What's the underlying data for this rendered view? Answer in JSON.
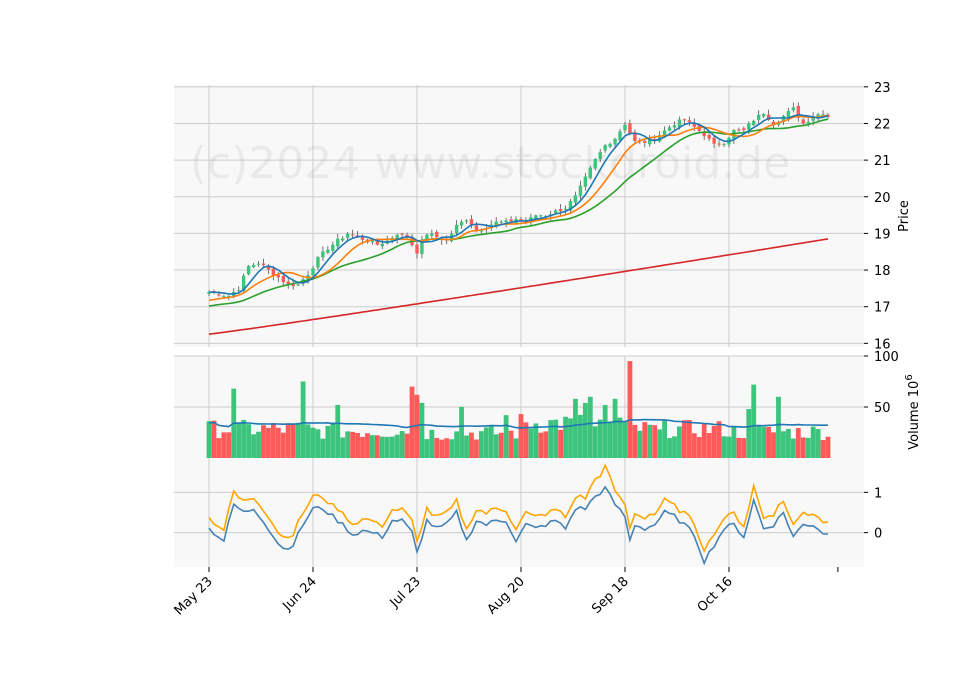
{
  "chart_data": {
    "type": "candlestick-multi-panel",
    "watermark": "(c)2024 www.stockdroid.de",
    "colors": {
      "up": "#3cc47c",
      "down": "#ff5a5a",
      "panel_bg": "#f8f8f8",
      "grid": "#cccccc",
      "ma5": "#1f77b4",
      "ma10": "#ff7f0e",
      "ma20": "#2ca02c",
      "ma100": "#d62728",
      "vol_ma": "#1f77b4",
      "osc_a": "#4682b4",
      "osc_b": "#ffa500"
    },
    "x_ticks": [
      "May 23",
      "Jun 24",
      "Jul 23",
      "Aug 20",
      "Sep 18",
      "Oct 16"
    ],
    "x_tick_index": [
      0,
      21,
      42,
      63,
      84,
      105
    ],
    "n_bars": 126,
    "price_panel": {
      "ylabel": "Price",
      "ylim": [
        15.9,
        23.05
      ],
      "yticks": [
        "16",
        "17",
        "18",
        "19",
        "20",
        "21",
        "22",
        "23"
      ],
      "ytick_values": [
        16,
        17,
        18,
        19,
        20,
        21,
        22,
        23
      ],
      "close_keypoints": [
        [
          0,
          17.4
        ],
        [
          4,
          17.3
        ],
        [
          6,
          17.5
        ],
        [
          8,
          18.1
        ],
        [
          10,
          18.2
        ],
        [
          12,
          18.0
        ],
        [
          14,
          17.8
        ],
        [
          16,
          17.6
        ],
        [
          18,
          17.6
        ],
        [
          20,
          17.9
        ],
        [
          22,
          18.3
        ],
        [
          24,
          18.6
        ],
        [
          26,
          18.8
        ],
        [
          28,
          19.0
        ],
        [
          30,
          18.9
        ],
        [
          32,
          18.8
        ],
        [
          34,
          18.7
        ],
        [
          36,
          18.8
        ],
        [
          38,
          19.0
        ],
        [
          40,
          18.9
        ],
        [
          42,
          18.5
        ],
        [
          44,
          19.0
        ],
        [
          46,
          18.9
        ],
        [
          48,
          18.8
        ],
        [
          50,
          19.2
        ],
        [
          52,
          19.4
        ],
        [
          54,
          19.1
        ],
        [
          56,
          19.2
        ],
        [
          58,
          19.3
        ],
        [
          60,
          19.3
        ],
        [
          62,
          19.4
        ],
        [
          64,
          19.3
        ],
        [
          66,
          19.5
        ],
        [
          68,
          19.5
        ],
        [
          70,
          19.6
        ],
        [
          72,
          19.7
        ],
        [
          74,
          20.0
        ],
        [
          76,
          20.5
        ],
        [
          78,
          21.0
        ],
        [
          80,
          21.4
        ],
        [
          82,
          21.6
        ],
        [
          84,
          22.0
        ],
        [
          86,
          21.5
        ],
        [
          88,
          21.5
        ],
        [
          90,
          21.6
        ],
        [
          92,
          21.8
        ],
        [
          94,
          22.0
        ],
        [
          96,
          22.1
        ],
        [
          98,
          21.9
        ],
        [
          100,
          21.7
        ],
        [
          102,
          21.4
        ],
        [
          104,
          21.5
        ],
        [
          106,
          21.8
        ],
        [
          108,
          21.8
        ],
        [
          110,
          22.1
        ],
        [
          112,
          22.3
        ],
        [
          114,
          22.0
        ],
        [
          116,
          22.2
        ],
        [
          118,
          22.4
        ],
        [
          120,
          22.0
        ],
        [
          122,
          22.2
        ],
        [
          124,
          22.3
        ],
        [
          125,
          22.2
        ]
      ],
      "ma_start": {
        "ma5": 17.4,
        "ma10": 17.15,
        "ma20": 17.0,
        "ma100": 16.25
      },
      "ma100_end": 18.85
    },
    "volume_panel": {
      "ylabel": "Volume  10^6",
      "ylim": [
        0,
        100
      ],
      "yticks": [
        "50",
        "100"
      ],
      "ytick_values": [
        50,
        100
      ],
      "spikes": [
        [
          5,
          68
        ],
        [
          19,
          75
        ],
        [
          26,
          52
        ],
        [
          41,
          70
        ],
        [
          42,
          62
        ],
        [
          43,
          54
        ],
        [
          51,
          50
        ],
        [
          60,
          42
        ],
        [
          74,
          58
        ],
        [
          76,
          54
        ],
        [
          77,
          60
        ],
        [
          80,
          52
        ],
        [
          82,
          58
        ],
        [
          85,
          95
        ],
        [
          91,
          28
        ],
        [
          109,
          48
        ],
        [
          110,
          72
        ],
        [
          115,
          60
        ]
      ],
      "base_level": [
        30,
        28,
        26,
        36,
        30,
        27
      ]
    },
    "oscillator_panel": {
      "ylim": [
        -0.85,
        1.85
      ],
      "yticks": [
        "0",
        "1"
      ],
      "ytick_values": [
        0,
        1
      ],
      "keypoints": [
        [
          0,
          0.1
        ],
        [
          3,
          -0.2
        ],
        [
          5,
          0.7
        ],
        [
          7,
          0.5
        ],
        [
          9,
          0.6
        ],
        [
          11,
          0.3
        ],
        [
          13,
          -0.1
        ],
        [
          15,
          -0.4
        ],
        [
          17,
          -0.3
        ],
        [
          19,
          0.2
        ],
        [
          21,
          0.6
        ],
        [
          23,
          0.6
        ],
        [
          25,
          0.4
        ],
        [
          27,
          0.2
        ],
        [
          29,
          -0.05
        ],
        [
          31,
          0.05
        ],
        [
          33,
          0.0
        ],
        [
          35,
          -0.1
        ],
        [
          37,
          0.3
        ],
        [
          39,
          0.3
        ],
        [
          41,
          0.0
        ],
        [
          42,
          -0.5
        ],
        [
          44,
          0.3
        ],
        [
          46,
          0.1
        ],
        [
          48,
          0.2
        ],
        [
          50,
          0.5
        ],
        [
          52,
          -0.2
        ],
        [
          54,
          0.3
        ],
        [
          56,
          0.2
        ],
        [
          58,
          0.3
        ],
        [
          60,
          0.3
        ],
        [
          62,
          -0.2
        ],
        [
          64,
          0.2
        ],
        [
          66,
          0.1
        ],
        [
          68,
          0.2
        ],
        [
          70,
          0.3
        ],
        [
          72,
          0.1
        ],
        [
          74,
          0.6
        ],
        [
          76,
          0.6
        ],
        [
          78,
          0.9
        ],
        [
          80,
          1.1
        ],
        [
          82,
          0.7
        ],
        [
          84,
          0.4
        ],
        [
          85,
          -0.2
        ],
        [
          86,
          0.2
        ],
        [
          88,
          0.1
        ],
        [
          90,
          0.2
        ],
        [
          92,
          0.5
        ],
        [
          94,
          0.4
        ],
        [
          96,
          0.2
        ],
        [
          98,
          -0.05
        ],
        [
          100,
          -0.7
        ],
        [
          102,
          -0.3
        ],
        [
          104,
          0.1
        ],
        [
          106,
          0.2
        ],
        [
          108,
          -0.1
        ],
        [
          110,
          0.8
        ],
        [
          112,
          0.1
        ],
        [
          114,
          0.2
        ],
        [
          116,
          0.5
        ],
        [
          118,
          -0.1
        ],
        [
          120,
          0.2
        ],
        [
          122,
          0.2
        ],
        [
          124,
          0.0
        ],
        [
          125,
          -0.05
        ]
      ],
      "offset_b": 0.28
    }
  }
}
